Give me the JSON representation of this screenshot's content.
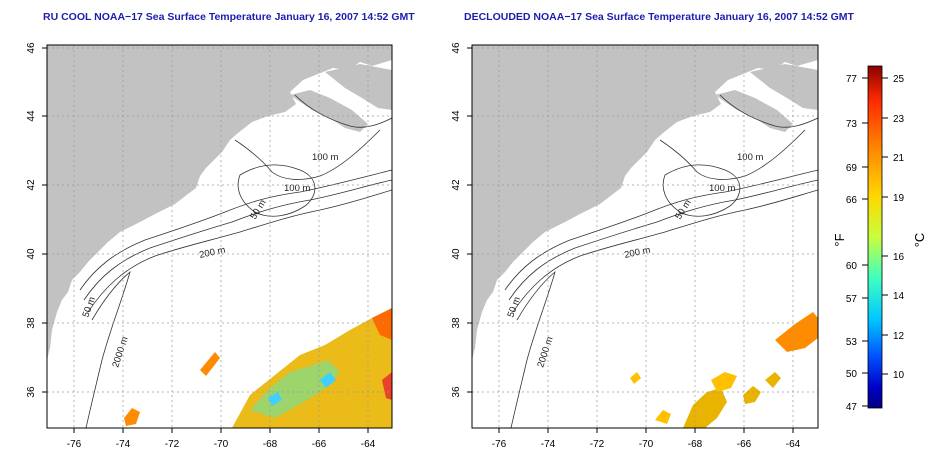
{
  "panels": [
    {
      "title": "RU COOL NOAA−17 Sea Surface Temperature January 16, 2007 14:52 GMT",
      "x_ticks": [
        "-76",
        "-74",
        "-72",
        "-70",
        "-68",
        "-66",
        "-64"
      ],
      "y_ticks": [
        "46",
        "44",
        "42",
        "40",
        "38",
        "36"
      ],
      "contour_labels": [
        "100 m",
        "100 m",
        "50 m",
        "200 m",
        "50 m",
        "2000 m"
      ]
    },
    {
      "title": "DECLOUDED NOAA−17 Sea Surface Temperature January 16, 2007 14:52 GMT",
      "x_ticks": [
        "-76",
        "-74",
        "-72",
        "-70",
        "-68",
        "-66",
        "-64"
      ],
      "y_ticks": [
        "46",
        "44",
        "42",
        "40",
        "38",
        "36"
      ],
      "contour_labels": [
        "100 m",
        "100 m",
        "50 m",
        "200 m",
        "50 m",
        "2000 m"
      ]
    }
  ],
  "colorbar": {
    "unit_f": "°F",
    "unit_c": "°C",
    "ticks_f": [
      "77",
      "73",
      "69",
      "66",
      "60",
      "57",
      "53",
      "50",
      "47"
    ],
    "ticks_c": [
      "25",
      "23",
      "21",
      "19",
      "16",
      "14",
      "12",
      "10"
    ],
    "gradient_colors": [
      "#8b0000",
      "#ff2a00",
      "#ff8c00",
      "#ffd700",
      "#c8ff3c",
      "#40ffc0",
      "#00c8ff",
      "#0050ff",
      "#0000c8",
      "#000080"
    ]
  },
  "colors": {
    "land": "#c2c2c2",
    "title": "#1d1db0"
  }
}
